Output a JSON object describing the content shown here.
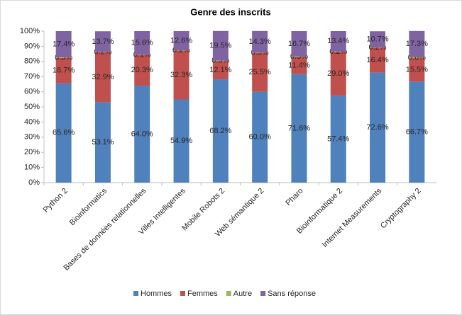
{
  "chart_data": {
    "type": "stacked_bar",
    "title": "Genre des inscrits",
    "categories": [
      "Python 2",
      "Bioinformatics",
      "Bases de données relationnelles",
      "Villes Intelligentes",
      "Mobile Robots 2",
      "Web sémantique 2",
      "Pharo",
      "Bioinformatique 2",
      "Internet Measurements",
      "Cryptography 2"
    ],
    "series": [
      {
        "name": "Hommes",
        "color": "#4f81bd",
        "values": [
          65.6,
          53.1,
          64,
          54.9,
          68.2,
          60,
          71.6,
          57.4,
          72.6,
          66.7
        ],
        "value_labels": [
          "65.6%",
          "53.1%",
          "64.0%",
          "54.9%",
          "68.2%",
          "60.0%",
          "71.6%",
          "57.4%",
          "72.6%",
          "66.7%"
        ]
      },
      {
        "name": "Femmes",
        "color": "#c0504d",
        "values": [
          16.7,
          32.9,
          20.3,
          32.3,
          12.1,
          25.5,
          11.4,
          29,
          16.4,
          15.5
        ],
        "value_labels": [
          "16.7%",
          "32.9%",
          "20.3%",
          "32.3%",
          "12.1%",
          "25.5%",
          "11.4%",
          "29.0%",
          "16.4%",
          "15.5%"
        ]
      },
      {
        "name": "Autre",
        "color": "#9bbb59",
        "values": [
          0.3,
          0.2,
          0.1,
          0.2,
          0.3,
          0.3,
          0.3,
          0.2,
          0.2,
          0.6
        ],
        "value_labels": [
          "0.3%",
          "0.2%",
          "0.1%",
          "0.2%",
          "0.3%",
          "0.3%",
          "0.3%",
          "0.2%",
          "0.2%",
          "0.6%"
        ]
      },
      {
        "name": "Sans réponse",
        "color": "#8064a2",
        "values": [
          17.4,
          13.7,
          15.6,
          12.6,
          19.5,
          14.3,
          16.7,
          13.4,
          10.7,
          17.3
        ],
        "value_labels": [
          "17.4%",
          "13.7%",
          "15.6%",
          "12.6%",
          "19.5%",
          "14.3%",
          "16.7%",
          "13.4%",
          "10.7%",
          "17.3%"
        ]
      }
    ],
    "ylim": [
      0,
      100
    ],
    "yticks": [
      {
        "value": 0,
        "label": "0%"
      },
      {
        "value": 10,
        "label": "10%"
      },
      {
        "value": 20,
        "label": "20%"
      },
      {
        "value": 30,
        "label": "30%"
      },
      {
        "value": 40,
        "label": "40%"
      },
      {
        "value": 50,
        "label": "50%"
      },
      {
        "value": 60,
        "label": "60%"
      },
      {
        "value": 70,
        "label": "70%"
      },
      {
        "value": 80,
        "label": "80%"
      },
      {
        "value": 90,
        "label": "90%"
      },
      {
        "value": 100,
        "label": "100%"
      }
    ],
    "grid": false,
    "legend": "bottom"
  }
}
